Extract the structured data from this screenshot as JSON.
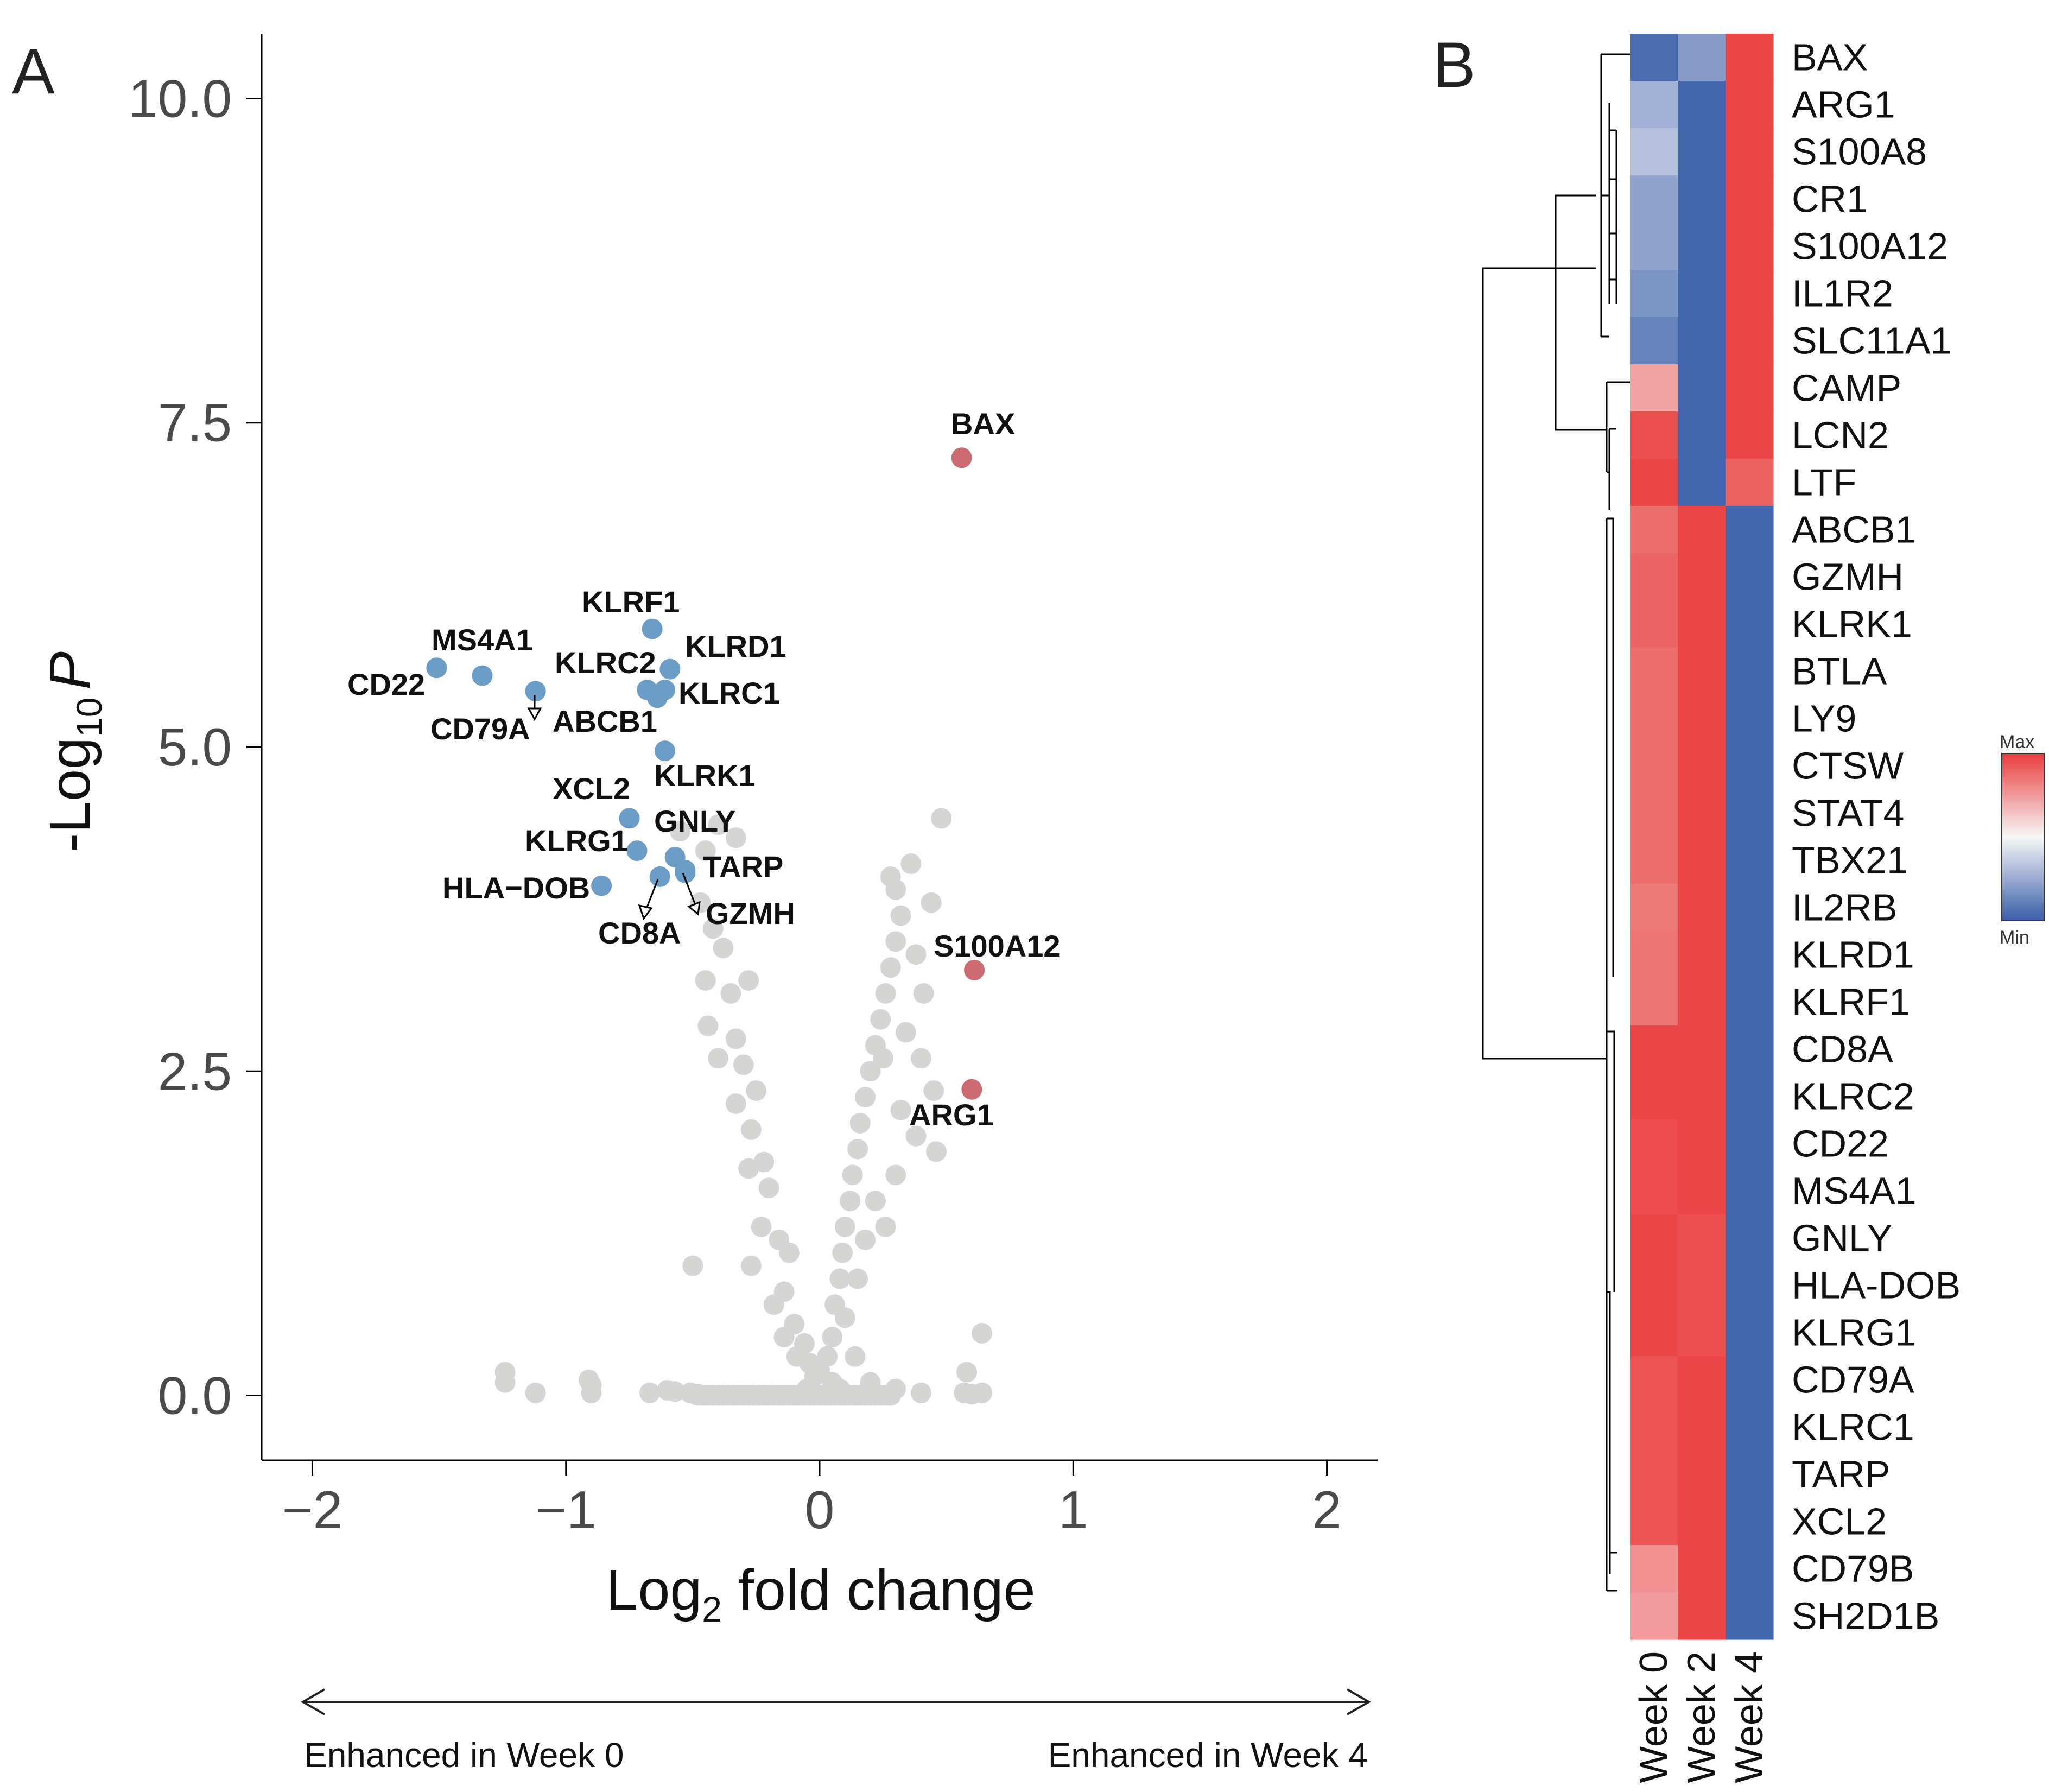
{
  "figure": {
    "panel_a_label": "A",
    "panel_b_label": "B"
  },
  "chart_data": [
    {
      "type": "scatter",
      "title": "",
      "xlabel_main": "Log",
      "xlabel_sub": "2",
      "xlabel_rest": " fold change",
      "ylabel_prefix": "-Log",
      "ylabel_sub": "10",
      "ylabel_var": "P",
      "xlim": [
        -2.2,
        2.2
      ],
      "ylim": [
        -0.5,
        10.5
      ],
      "xticks": [
        -2,
        -1,
        0,
        1,
        2
      ],
      "xtick_labels": [
        "−2",
        "−1",
        "0",
        "1",
        "2"
      ],
      "yticks": [
        0,
        2.5,
        5,
        7.5,
        10
      ],
      "ytick_labels": [
        "0.0",
        "2.5",
        "5.0",
        "7.5",
        "10.0"
      ],
      "colors": {
        "down": "#6b9dc6",
        "up": "#cd6b72",
        "ns": "#d5d6d4"
      },
      "direction_left": "Enhanced in Week 0",
      "direction_right": "Enhanced in Week 4",
      "labeled_points": [
        {
          "gene": "BAX",
          "x": 0.56,
          "y": 7.23,
          "group": "up"
        },
        {
          "gene": "S100A12",
          "x": 0.61,
          "y": 3.28,
          "group": "up"
        },
        {
          "gene": "ARG1",
          "x": 0.6,
          "y": 2.36,
          "group": "up"
        },
        {
          "gene": "KLRF1",
          "x": -0.66,
          "y": 5.91,
          "group": "down"
        },
        {
          "gene": "KLRD1",
          "x": -0.59,
          "y": 5.6,
          "group": "down"
        },
        {
          "gene": "MS4A1",
          "x": -1.33,
          "y": 5.55,
          "group": "down"
        },
        {
          "gene": "CD22",
          "x": -1.51,
          "y": 5.61,
          "group": "down"
        },
        {
          "gene": "KLRC2",
          "x": -0.68,
          "y": 5.44,
          "group": "down"
        },
        {
          "gene": "KLRC1",
          "x": -0.61,
          "y": 5.44,
          "group": "down"
        },
        {
          "gene": "ABCB1",
          "x": -0.64,
          "y": 5.38,
          "group": "down"
        },
        {
          "gene": "CD79A",
          "x": -1.12,
          "y": 5.43,
          "group": "down"
        },
        {
          "gene": "KLRK1",
          "x": -0.61,
          "y": 4.97,
          "group": "down"
        },
        {
          "gene": "XCL2",
          "x": -0.75,
          "y": 4.45,
          "group": "down"
        },
        {
          "gene": "GNLY",
          "x": -0.72,
          "y": 4.2,
          "group": "down"
        },
        {
          "gene": "KLRG1",
          "x": -0.57,
          "y": 4.15,
          "group": "down"
        },
        {
          "gene": "HLA−DOB",
          "x": -0.86,
          "y": 3.93,
          "group": "down"
        },
        {
          "gene": "TARP",
          "x": -0.53,
          "y": 4.03,
          "group": "down"
        },
        {
          "gene": "CD8A",
          "x": -0.63,
          "y": 4.0,
          "group": "down"
        },
        {
          "gene": "GZMH",
          "x": -0.53,
          "y": 4.05,
          "group": "down"
        }
      ],
      "background_points": [
        [
          -1.24,
          0.18
        ],
        [
          -1.24,
          0.1
        ],
        [
          -1.12,
          0.02
        ],
        [
          -0.91,
          0.12
        ],
        [
          -0.9,
          0.08
        ],
        [
          -0.9,
          0.02
        ],
        [
          -0.67,
          0.02
        ],
        [
          -0.6,
          0.04
        ],
        [
          -0.57,
          0.03
        ],
        [
          -0.51,
          0.02
        ],
        [
          -0.48,
          0.01
        ],
        [
          -0.5,
          1.0
        ],
        [
          -0.27,
          1.0
        ],
        [
          -0.55,
          4.35
        ],
        [
          -0.45,
          4.2
        ],
        [
          -0.4,
          4.4
        ],
        [
          -0.33,
          4.3
        ],
        [
          -0.47,
          3.8
        ],
        [
          -0.42,
          3.6
        ],
        [
          -0.38,
          3.45
        ],
        [
          -0.45,
          3.2
        ],
        [
          -0.35,
          3.1
        ],
        [
          -0.28,
          3.2
        ],
        [
          -0.44,
          2.85
        ],
        [
          -0.33,
          2.75
        ],
        [
          -0.3,
          2.55
        ],
        [
          -0.4,
          2.6
        ],
        [
          -0.25,
          2.35
        ],
        [
          -0.33,
          2.25
        ],
        [
          -0.27,
          2.05
        ],
        [
          -0.22,
          1.8
        ],
        [
          -0.28,
          1.75
        ],
        [
          -0.2,
          1.6
        ],
        [
          -0.16,
          1.2
        ],
        [
          -0.23,
          1.3
        ],
        [
          -0.12,
          1.1
        ],
        [
          -0.14,
          0.8
        ],
        [
          -0.18,
          0.7
        ],
        [
          -0.1,
          0.55
        ],
        [
          -0.14,
          0.45
        ],
        [
          -0.06,
          0.4
        ],
        [
          -0.09,
          0.3
        ],
        [
          -0.04,
          0.25
        ],
        [
          -0.02,
          0.15
        ],
        [
          0.0,
          0.2
        ],
        [
          0.03,
          0.3
        ],
        [
          0.05,
          0.45
        ],
        [
          0.06,
          0.7
        ],
        [
          0.08,
          0.9
        ],
        [
          0.09,
          1.1
        ],
        [
          0.1,
          1.3
        ],
        [
          0.12,
          1.5
        ],
        [
          0.13,
          1.7
        ],
        [
          0.15,
          1.9
        ],
        [
          0.16,
          2.1
        ],
        [
          0.18,
          2.3
        ],
        [
          0.2,
          2.5
        ],
        [
          0.22,
          2.7
        ],
        [
          0.24,
          2.9
        ],
        [
          0.26,
          3.1
        ],
        [
          0.28,
          3.3
        ],
        [
          0.3,
          3.5
        ],
        [
          0.32,
          3.7
        ],
        [
          0.3,
          3.9
        ],
        [
          0.28,
          4.0
        ],
        [
          0.36,
          4.1
        ],
        [
          0.48,
          4.45
        ],
        [
          0.44,
          3.8
        ],
        [
          0.38,
          3.4
        ],
        [
          0.41,
          3.1
        ],
        [
          0.34,
          2.8
        ],
        [
          0.4,
          2.6
        ],
        [
          0.25,
          2.6
        ],
        [
          0.45,
          2.35
        ],
        [
          0.32,
          2.2
        ],
        [
          0.38,
          2.0
        ],
        [
          0.46,
          1.88
        ],
        [
          0.3,
          1.7
        ],
        [
          0.22,
          1.5
        ],
        [
          0.18,
          1.2
        ],
        [
          0.26,
          1.3
        ],
        [
          0.15,
          0.9
        ],
        [
          0.1,
          0.6
        ],
        [
          0.14,
          0.3
        ],
        [
          0.2,
          0.1
        ],
        [
          0.3,
          0.05
        ],
        [
          0.4,
          0.02
        ],
        [
          0.57,
          0.02
        ],
        [
          0.6,
          0.01
        ],
        [
          0.64,
          0.02
        ],
        [
          0.64,
          0.48
        ],
        [
          0.58,
          0.18
        ],
        [
          0.05,
          0.1
        ],
        [
          -0.05,
          0.05
        ],
        [
          0.08,
          0.05
        ]
      ]
    },
    {
      "type": "heatmap",
      "columns": [
        "Week 0",
        "Week 2",
        "Week 4"
      ],
      "rows": [
        "BAX",
        "ARG1",
        "S100A8",
        "CR1",
        "S100A12",
        "IL1R2",
        "SLC11A1",
        "CAMP",
        "LCN2",
        "LTF",
        "ABCB1",
        "GZMH",
        "KLRK1",
        "BTLA",
        "LY9",
        "CTSW",
        "STAT4",
        "TBX21",
        "IL2RB",
        "KLRD1",
        "KLRF1",
        "CD8A",
        "KLRC2",
        "CD22",
        "MS4A1",
        "GNLY",
        "HLA-DOB",
        "KLRG1",
        "CD79A",
        "KLRC1",
        "TARP",
        "XCL2",
        "CD79B",
        "SH2D1B"
      ],
      "values": [
        [
          -0.9,
          -0.6,
          0.95
        ],
        [
          -0.45,
          -0.95,
          0.95
        ],
        [
          -0.35,
          -0.95,
          0.95
        ],
        [
          -0.55,
          -0.95,
          0.95
        ],
        [
          -0.55,
          -0.95,
          0.95
        ],
        [
          -0.65,
          -0.95,
          0.95
        ],
        [
          -0.75,
          -0.95,
          0.95
        ],
        [
          0.45,
          -0.95,
          0.95
        ],
        [
          0.9,
          -0.95,
          0.95
        ],
        [
          0.95,
          -0.95,
          0.8
        ],
        [
          0.75,
          0.95,
          -0.95
        ],
        [
          0.78,
          0.95,
          -0.95
        ],
        [
          0.78,
          0.95,
          -0.95
        ],
        [
          0.75,
          0.95,
          -0.95
        ],
        [
          0.75,
          0.95,
          -0.95
        ],
        [
          0.75,
          0.95,
          -0.95
        ],
        [
          0.75,
          0.95,
          -0.95
        ],
        [
          0.75,
          0.95,
          -0.95
        ],
        [
          0.68,
          0.95,
          -0.95
        ],
        [
          0.7,
          0.95,
          -0.95
        ],
        [
          0.7,
          0.95,
          -0.95
        ],
        [
          0.95,
          0.95,
          -0.95
        ],
        [
          0.95,
          0.95,
          -0.95
        ],
        [
          0.92,
          0.95,
          -0.95
        ],
        [
          0.92,
          0.95,
          -0.95
        ],
        [
          0.95,
          0.9,
          -0.95
        ],
        [
          0.95,
          0.9,
          -0.95
        ],
        [
          0.95,
          0.9,
          -0.95
        ],
        [
          0.88,
          0.95,
          -0.95
        ],
        [
          0.88,
          0.95,
          -0.95
        ],
        [
          0.88,
          0.95,
          -0.95
        ],
        [
          0.88,
          0.95,
          -0.95
        ],
        [
          0.55,
          0.95,
          -0.95
        ],
        [
          0.5,
          0.95,
          -0.95
        ]
      ],
      "colorbar_max": "Max",
      "colorbar_min": "Min",
      "colors": {
        "max": "#ea3d3e",
        "mid": "#f7f7f7",
        "min": "#3a5ea9"
      }
    }
  ]
}
